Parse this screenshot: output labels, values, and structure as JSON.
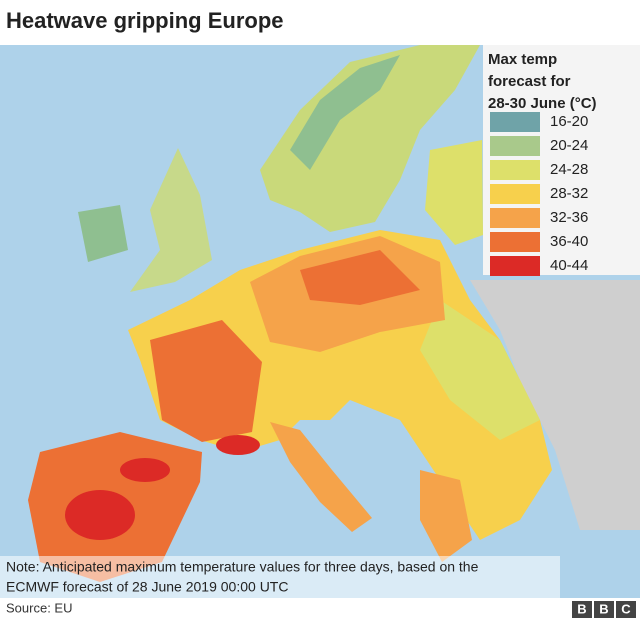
{
  "header": {
    "title": "Heatwave gripping Europe"
  },
  "legend": {
    "title_lines": [
      "Max temp",
      "forecast for",
      "28-30 June (°C)"
    ],
    "items": [
      {
        "label": "16-20",
        "color": "#6fa3a8"
      },
      {
        "label": "20-24",
        "color": "#a9c98b"
      },
      {
        "label": "24-28",
        "color": "#dde06a"
      },
      {
        "label": "28-32",
        "color": "#f7d04c"
      },
      {
        "label": "32-36",
        "color": "#f5a34a"
      },
      {
        "label": "36-40",
        "color": "#ec7034"
      },
      {
        "label": "40-44",
        "color": "#dc2a26"
      }
    ]
  },
  "note_lines": [
    "Note: Anticipated maximum temperature values for three days, based on the",
    "ECMWF forecast of 28 June 2019 00:00 UTC"
  ],
  "footer": {
    "source": "Source: EU",
    "logo_letters": [
      "B",
      "B",
      "C"
    ]
  }
}
